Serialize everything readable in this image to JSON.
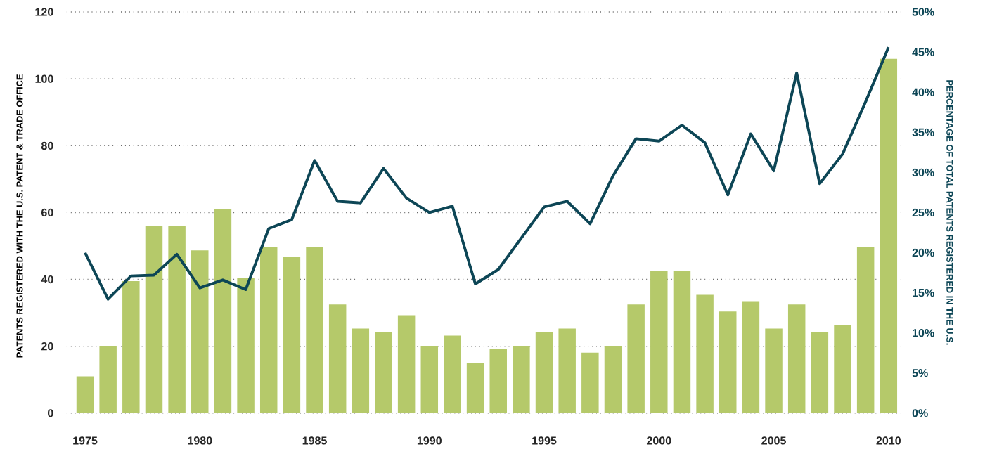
{
  "chart_data": {
    "type": "bar",
    "ylabel": "PATENTS REGISTERED WITH THE U.S. PATENT & TRADE OFFICE",
    "y2label": "PERCENTAGE OF TOTAL PATENTS REGISTERED IN THE U.S.",
    "x": [
      1975,
      1976,
      1977,
      1978,
      1979,
      1980,
      1981,
      1982,
      1983,
      1984,
      1985,
      1986,
      1987,
      1988,
      1989,
      1990,
      1991,
      1992,
      1993,
      1994,
      1995,
      1996,
      1997,
      1998,
      1999,
      2000,
      2001,
      2002,
      2003,
      2004,
      2005,
      2006,
      2007,
      2008,
      2009,
      2010
    ],
    "xlim": [
      1974.2,
      2010.6
    ],
    "xticks": [
      1975,
      1980,
      1985,
      1990,
      1995,
      2000,
      2005,
      2010
    ],
    "ylim": [
      0,
      120
    ],
    "yticks": [
      0,
      20,
      40,
      60,
      80,
      100,
      120
    ],
    "y2lim": [
      0,
      50
    ],
    "y2ticks": [
      {
        "value": 0,
        "label": "0%"
      },
      {
        "value": 5,
        "label": "5%"
      },
      {
        "value": 10,
        "label": "10%"
      },
      {
        "value": 15,
        "label": "15%"
      },
      {
        "value": 20,
        "label": "20%"
      },
      {
        "value": 25,
        "label": "25%"
      },
      {
        "value": 30,
        "label": "30%"
      },
      {
        "value": 35,
        "label": "35%"
      },
      {
        "value": 40,
        "label": "40%"
      },
      {
        "value": 45,
        "label": "45%"
      },
      {
        "value": 50,
        "label": "50%"
      }
    ],
    "grid": "y",
    "marker": "none",
    "line_style": "solid",
    "series": [
      {
        "color": "#b5c96a",
        "values": [
          11,
          20,
          39.5,
          56,
          56,
          48.7,
          61,
          40.5,
          49.6,
          46.8,
          49.6,
          32.5,
          25.3,
          24.3,
          29.3,
          20,
          23.2,
          15,
          19.2,
          20,
          24.3,
          25.3,
          18.1,
          20,
          32.5,
          42.6,
          42.6,
          35.4,
          30.4,
          33.3,
          25.3,
          32.5,
          24.3,
          26.4,
          49.6,
          106
        ]
      },
      {
        "type": "line",
        "axis": "y2",
        "color": "#0d4656",
        "values": [
          20.0,
          14.2,
          17.1,
          17.2,
          19.8,
          15.6,
          16.6,
          15.4,
          23.0,
          24.1,
          31.5,
          26.4,
          26.2,
          30.5,
          26.8,
          25.0,
          25.8,
          16.1,
          17.9,
          21.8,
          25.7,
          26.4,
          23.6,
          29.6,
          34.2,
          33.9,
          35.9,
          33.7,
          27.2,
          34.8,
          30.2,
          42.4,
          28.6,
          32.3,
          38.8,
          45.6
        ]
      }
    ]
  }
}
